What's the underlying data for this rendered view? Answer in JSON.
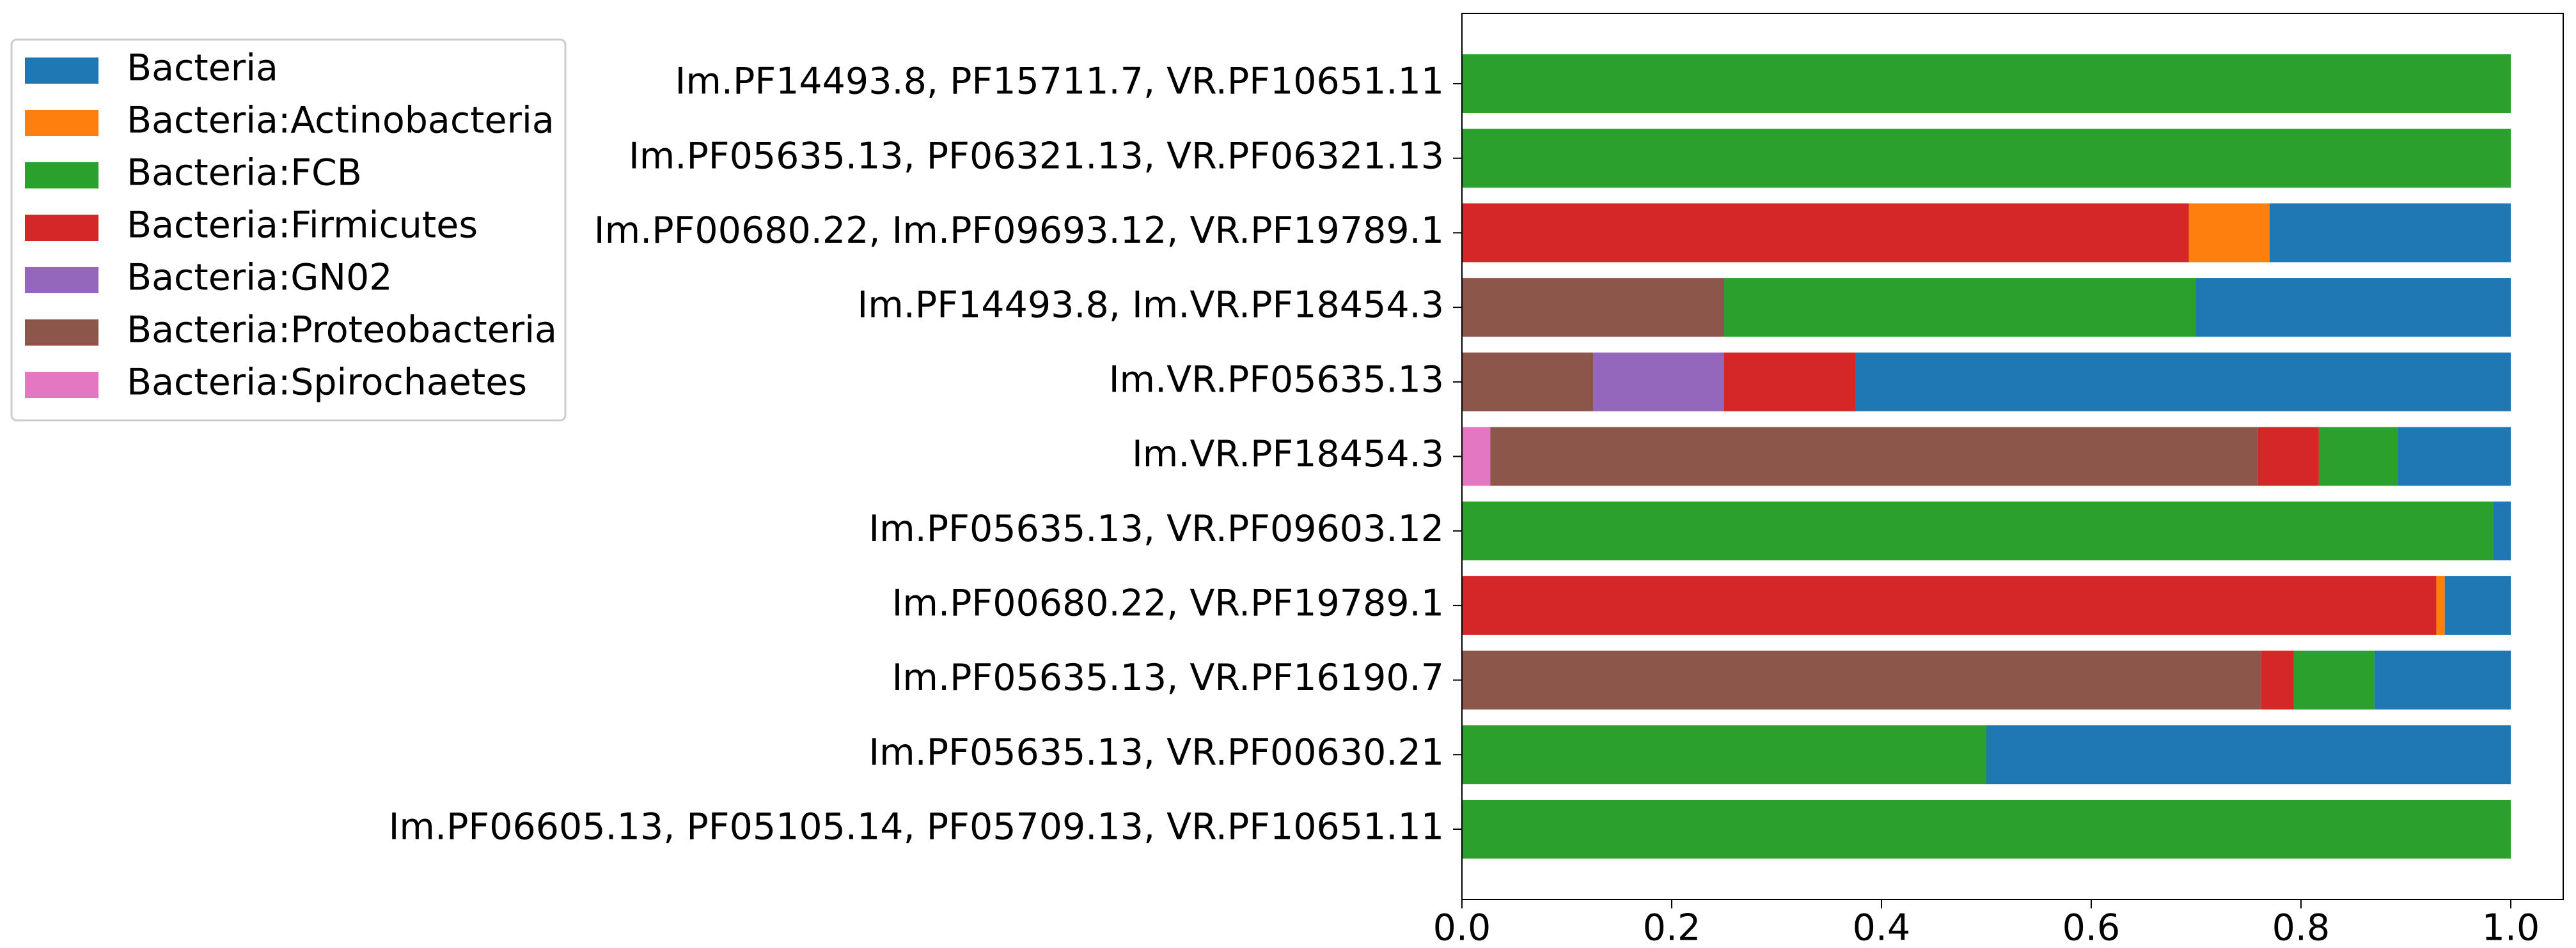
{
  "chart_data": {
    "type": "stacked-barh",
    "categories": [
      "Im.PF14493.8, PF15711.7, VR.PF10651.11",
      "Im.PF05635.13, PF06321.13, VR.PF06321.13",
      "Im.PF00680.22, Im.PF09693.12, VR.PF19789.1",
      "Im.PF14493.8, Im.VR.PF18454.3",
      "Im.VR.PF05635.13",
      "Im.VR.PF18454.3",
      "Im.PF05635.13, VR.PF09603.12",
      "Im.PF00680.22, VR.PF19789.1",
      "Im.PF05635.13, VR.PF16190.7",
      "Im.PF05635.13, VR.PF00630.21",
      "Im.PF06605.13, PF05105.14, PF05709.13, VR.PF10651.11"
    ],
    "series": [
      {
        "name": "Bacteria",
        "color": "#1f77b4",
        "values": [
          0,
          0,
          0.23,
          0.3,
          0.625,
          0.108,
          0.017,
          0.063,
          0.13,
          0.5,
          0
        ]
      },
      {
        "name": "Bacteria:Actinobacteria",
        "color": "#ff7f0e",
        "values": [
          0,
          0,
          0.077,
          0,
          0,
          0,
          0,
          0.008,
          0,
          0,
          0
        ]
      },
      {
        "name": "Bacteria:FCB",
        "color": "#2ca02c",
        "values": [
          1,
          1,
          0,
          0.45,
          0,
          0.075,
          0.983,
          0,
          0.077,
          0.5,
          1
        ]
      },
      {
        "name": "Bacteria:Firmicutes",
        "color": "#d62728",
        "values": [
          0,
          0,
          0.693,
          0,
          0.125,
          0.058,
          0,
          0.929,
          0.031,
          0,
          0
        ]
      },
      {
        "name": "Bacteria:GN02",
        "color": "#9467bd",
        "values": [
          0,
          0,
          0,
          0,
          0.125,
          0,
          0,
          0,
          0,
          0,
          0
        ]
      },
      {
        "name": "Bacteria:Proteobacteria",
        "color": "#8c564b",
        "values": [
          0,
          0,
          0,
          0.25,
          0.125,
          0.732,
          0,
          0,
          0.762,
          0,
          0
        ]
      },
      {
        "name": "Bacteria:Spirochaetes",
        "color": "#e377c2",
        "values": [
          0,
          0,
          0,
          0,
          0,
          0.027,
          0,
          0,
          0,
          0,
          0
        ]
      }
    ],
    "xlim": [
      0,
      1.05
    ],
    "xticks": [
      {
        "value": 0,
        "label": "0.0"
      },
      0.2,
      0.4,
      0.6,
      0.8,
      {
        "value": 1,
        "label": "1.0"
      }
    ]
  }
}
